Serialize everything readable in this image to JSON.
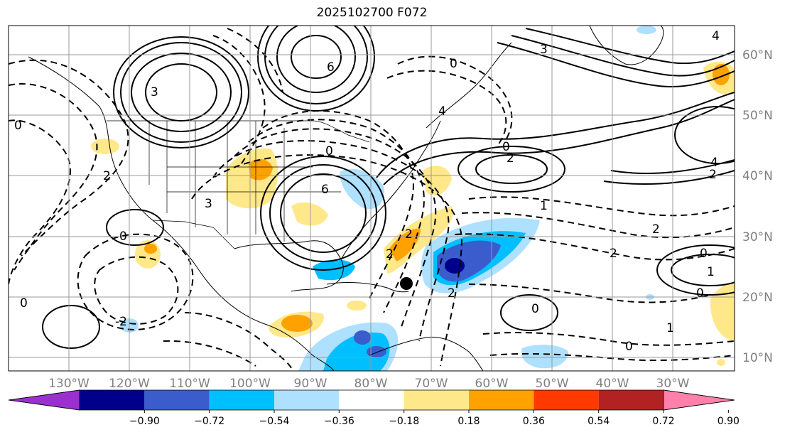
{
  "title": "2025102700 F072",
  "lon_labels": [
    "130°W",
    "120°W",
    "110°W",
    "100°W",
    "90°W",
    "80°W",
    "70°W",
    "60°W",
    "50°W",
    "40°W",
    "30°W"
  ],
  "lat_labels": [
    "60°N",
    "50°N",
    "40°N",
    "30°N",
    "20°N",
    "10°N"
  ],
  "colorbar": {
    "tick_labels": [
      "−0.90",
      "−0.72",
      "−0.54",
      "−0.36",
      "−0.18",
      "0.18",
      "0.36",
      "0.54",
      "0.72",
      "0.90"
    ],
    "colors": [
      "#9b30d0",
      "#00008b",
      "#3a5ccc",
      "#00bfff",
      "#aee0ff",
      "#ffffff",
      "#ffe88a",
      "#ffa200",
      "#ff3a00",
      "#b22222",
      "#ff80aa"
    ]
  },
  "contour_labels": [
    "4",
    "3",
    "6",
    "3",
    "0",
    "0",
    "4",
    "2",
    "0",
    "3",
    "0",
    "6",
    "0",
    "2",
    "1",
    "0",
    "0",
    "2",
    "2",
    "2",
    "0",
    "1",
    "0",
    "1",
    "0",
    "2",
    "-2",
    "2",
    "4",
    "2"
  ],
  "colors": {
    "solid": "#000000",
    "grid": "#999999",
    "tick_text": "#808080"
  }
}
